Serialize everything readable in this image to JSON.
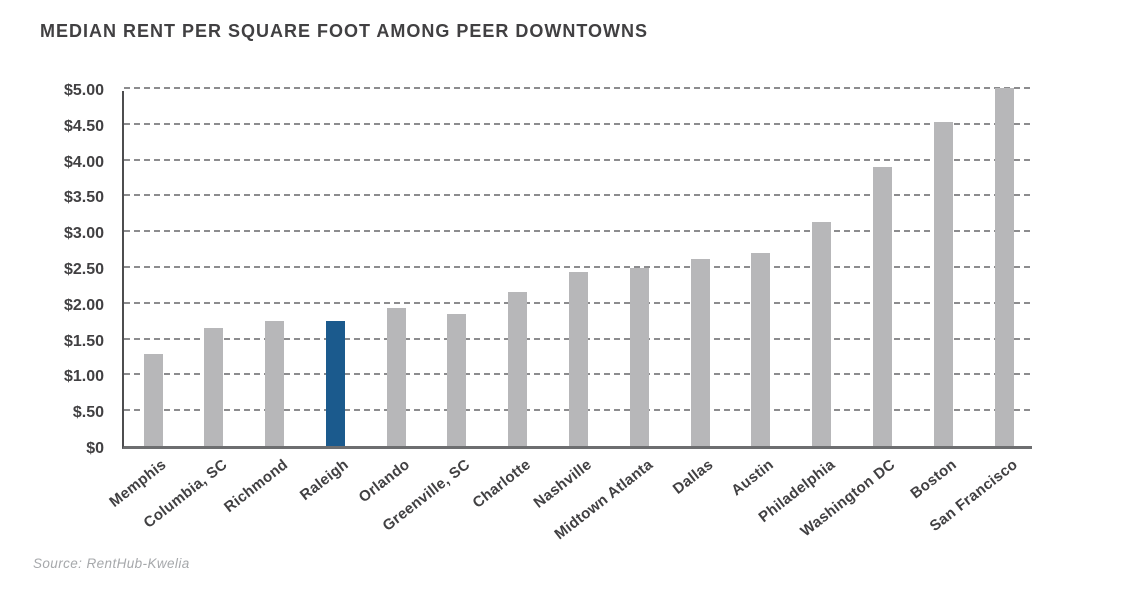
{
  "title": "MEDIAN RENT PER SQUARE FOOT AMONG PEER DOWNTOWNS",
  "source": "Source: RentHub-Kwelia",
  "colors": {
    "bar_default": "#b7b7b9",
    "bar_highlight": "#1b5a8d",
    "axis_left": "#4d4d4f",
    "axis_bottom": "#6d6e70",
    "gridline": "#8c8c8e",
    "title_text": "#414042",
    "tick_text": "#414042",
    "source_text": "#a6a8ab"
  },
  "chart_data": {
    "type": "bar",
    "title": "MEDIAN RENT PER SQUARE FOOT AMONG PEER DOWNTOWNS",
    "categories": [
      "Memphis",
      "Columbia, SC",
      "Richmond",
      "Raleigh",
      "Orlando",
      "Greenville, SC",
      "Charlotte",
      "Nashville",
      "Midtown Atlanta",
      "Dallas",
      "Austin",
      "Philadelphia",
      "Washington DC",
      "Boston",
      "San Francisco"
    ],
    "values": [
      1.28,
      1.65,
      1.75,
      1.75,
      1.93,
      1.85,
      2.15,
      2.43,
      2.48,
      2.61,
      2.69,
      3.13,
      3.9,
      4.52,
      5.0
    ],
    "highlight_category": "Raleigh",
    "highlight_index": 3,
    "xlabel": "",
    "ylabel": "",
    "ylim": [
      0,
      5
    ],
    "ytick_step": 0.5,
    "ytick_labels": [
      "$0",
      "$.50",
      "$1.00",
      "$1.50",
      "$2.00",
      "$2.50",
      "$3.00",
      "$3.50",
      "$4.00",
      "$4.50",
      "$5.00"
    ],
    "grid": "horizontal-dashed",
    "legend": "none"
  }
}
